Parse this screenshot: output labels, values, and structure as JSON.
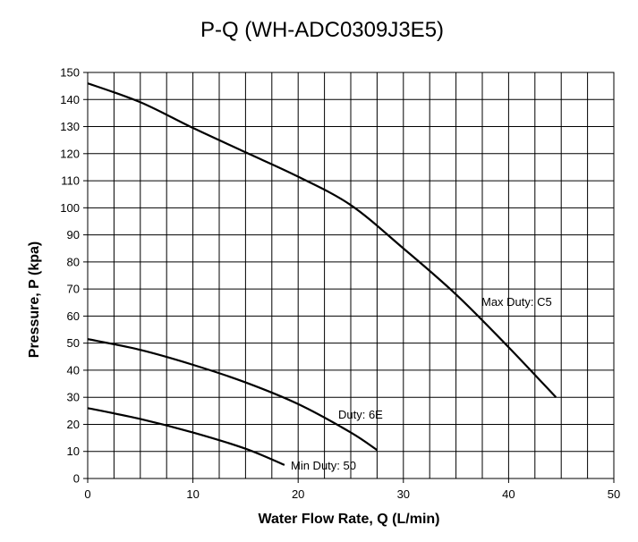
{
  "chart_data": {
    "type": "line",
    "title": "P-Q (WH-ADC0309J3E5)",
    "xlabel": "Water Flow Rate, Q (L/min)",
    "ylabel": "Pressure, P (kpa)",
    "xlim": [
      0,
      50
    ],
    "ylim": [
      0,
      150
    ],
    "x_ticks": [
      0,
      10,
      20,
      30,
      40,
      50
    ],
    "y_ticks": [
      0,
      10,
      20,
      30,
      40,
      50,
      60,
      70,
      80,
      90,
      100,
      110,
      120,
      130,
      140,
      150
    ],
    "x_minor_step": 2.5,
    "grid": true,
    "series": [
      {
        "name": "Max Duty: C5",
        "color": "#000000",
        "x": [
          0,
          5,
          10,
          15,
          20,
          25,
          30,
          35,
          40,
          44.5
        ],
        "y": [
          146,
          139,
          129.5,
          120.5,
          111.5,
          101,
          85,
          68,
          48.5,
          30
        ]
      },
      {
        "name": "Duty: 6E",
        "color": "#000000",
        "x": [
          0,
          5,
          10,
          15,
          20,
          25,
          27.5
        ],
        "y": [
          51.5,
          47.5,
          42,
          35.5,
          27.5,
          17,
          10.5
        ]
      },
      {
        "name": "Min Duty: 50",
        "color": "#000000",
        "x": [
          0,
          5,
          10,
          15,
          18.7
        ],
        "y": [
          26,
          22,
          17,
          11,
          5
        ]
      }
    ]
  }
}
